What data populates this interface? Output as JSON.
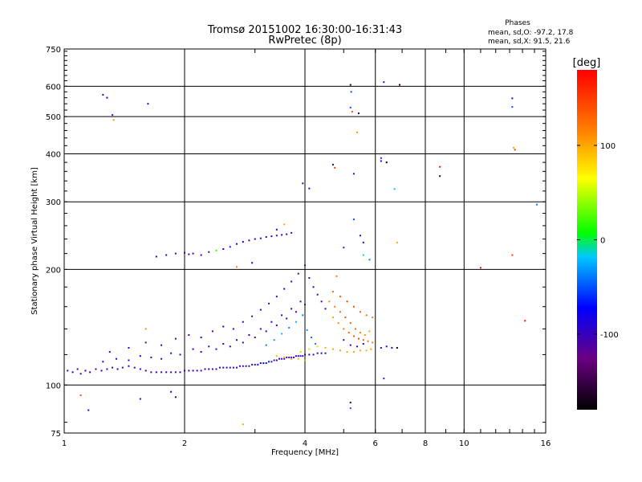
{
  "header": {
    "title_line1": "Tromsø 20151002 16:30:00-16:31:43",
    "title_line2": "RwPretec (8p)"
  },
  "stats": {
    "heading": "Phases",
    "line_o": "mean, sd,O: -97.2, 17.8",
    "line_x": "mean, sd,X:  91.5, 21.6"
  },
  "colorbar": {
    "label": "[deg]",
    "ticks": [
      "100",
      "0",
      "-100"
    ],
    "tick_values": [
      100,
      0,
      -100
    ],
    "range": [
      -180,
      180
    ],
    "colors": [
      "#000000",
      "#6a0080",
      "#0000ff",
      "#00c8ff",
      "#00ff00",
      "#ffff00",
      "#ff8000",
      "#ff0000"
    ]
  },
  "chart_data": {
    "type": "scatter",
    "xlabel": "Frequency [MHz]",
    "ylabel": "Stationary phase Virtual Height [km]",
    "xscale": "log",
    "yscale": "log",
    "xlim": [
      1,
      16
    ],
    "ylim": [
      75,
      750
    ],
    "xticks": [
      1,
      2,
      4,
      6,
      8,
      10,
      16
    ],
    "xtick_labels": [
      "1",
      "2",
      "4",
      "6",
      "8",
      "10",
      "16"
    ],
    "yticks": [
      75,
      100,
      200,
      300,
      400,
      500,
      600,
      750
    ],
    "ytick_labels": [
      "75",
      "100",
      "200",
      "300",
      "400",
      "500",
      "600",
      "750"
    ],
    "grid": true,
    "color_variable": "phase [deg]",
    "points": [
      [
        1.02,
        109,
        -100
      ],
      [
        1.05,
        108,
        -95
      ],
      [
        1.08,
        110,
        -105
      ],
      [
        1.1,
        107,
        -98
      ],
      [
        1.13,
        109,
        -102
      ],
      [
        1.16,
        108,
        -96
      ],
      [
        1.2,
        110,
        -100
      ],
      [
        1.24,
        109,
        -104
      ],
      [
        1.28,
        110,
        -99
      ],
      [
        1.32,
        111,
        -101
      ],
      [
        1.36,
        110,
        -97
      ],
      [
        1.4,
        111,
        -103
      ],
      [
        1.45,
        112,
        -100
      ],
      [
        1.5,
        111,
        -98
      ],
      [
        1.55,
        110,
        -102
      ],
      [
        1.6,
        109,
        -99
      ],
      [
        1.65,
        108,
        -101
      ],
      [
        1.7,
        108,
        -96
      ],
      [
        1.75,
        108,
        -104
      ],
      [
        1.8,
        108,
        -100
      ],
      [
        1.85,
        108,
        -98
      ],
      [
        1.9,
        108,
        -102
      ],
      [
        1.95,
        108,
        -97
      ],
      [
        2.0,
        109,
        -103
      ],
      [
        2.05,
        109,
        -99
      ],
      [
        2.1,
        109,
        -101
      ],
      [
        2.15,
        109,
        -100
      ],
      [
        2.2,
        109,
        -98
      ],
      [
        2.25,
        110,
        -102
      ],
      [
        2.3,
        110,
        -96
      ],
      [
        2.35,
        110,
        -104
      ],
      [
        2.4,
        110,
        -100
      ],
      [
        2.45,
        111,
        -99
      ],
      [
        2.5,
        111,
        -101
      ],
      [
        2.55,
        111,
        -100
      ],
      [
        2.6,
        111,
        -98
      ],
      [
        2.65,
        111,
        -103
      ],
      [
        2.7,
        111,
        -97
      ],
      [
        2.75,
        112,
        -101
      ],
      [
        2.8,
        112,
        -100
      ],
      [
        2.85,
        112,
        -99
      ],
      [
        2.9,
        112,
        -102
      ],
      [
        2.95,
        113,
        -98
      ],
      [
        3.0,
        113,
        -90
      ],
      [
        3.05,
        113,
        -85
      ],
      [
        3.1,
        114,
        -80
      ],
      [
        3.15,
        114,
        -75
      ],
      [
        3.2,
        114,
        -70
      ],
      [
        3.25,
        115,
        -65
      ],
      [
        3.3,
        115,
        -60
      ],
      [
        3.35,
        116,
        -100
      ],
      [
        3.4,
        116,
        -102
      ],
      [
        3.45,
        117,
        -98
      ],
      [
        3.5,
        117,
        -101
      ],
      [
        3.55,
        117,
        -99
      ],
      [
        3.6,
        118,
        -103
      ],
      [
        3.65,
        118,
        -97
      ],
      [
        3.7,
        118,
        -100
      ],
      [
        3.75,
        118,
        -102
      ],
      [
        3.8,
        119,
        -98
      ],
      [
        3.85,
        119,
        -100
      ],
      [
        3.9,
        119,
        -101
      ],
      [
        3.95,
        119,
        -99
      ],
      [
        4.0,
        120,
        -100
      ],
      [
        4.1,
        120,
        -98
      ],
      [
        4.2,
        120,
        -102
      ],
      [
        4.3,
        121,
        -100
      ],
      [
        4.4,
        121,
        -99
      ],
      [
        4.5,
        121,
        -101
      ],
      [
        1.25,
        115,
        -100
      ],
      [
        1.35,
        117,
        -98
      ],
      [
        1.45,
        116,
        -102
      ],
      [
        1.55,
        119,
        -99
      ],
      [
        1.65,
        118,
        -101
      ],
      [
        1.75,
        117,
        -97
      ],
      [
        1.85,
        121,
        -100
      ],
      [
        1.95,
        120,
        -103
      ],
      [
        2.1,
        124,
        -98
      ],
      [
        2.2,
        122,
        -101
      ],
      [
        2.3,
        126,
        -100
      ],
      [
        2.4,
        124,
        -99
      ],
      [
        2.5,
        128,
        -102
      ],
      [
        2.6,
        126,
        -97
      ],
      [
        2.7,
        131,
        -100
      ],
      [
        2.8,
        129,
        -101
      ],
      [
        2.9,
        135,
        -99
      ],
      [
        3.0,
        133,
        -103
      ],
      [
        3.1,
        140,
        -98
      ],
      [
        3.2,
        138,
        -100
      ],
      [
        3.3,
        146,
        -101
      ],
      [
        3.4,
        143,
        -99
      ],
      [
        3.5,
        152,
        -100
      ],
      [
        3.6,
        149,
        -102
      ],
      [
        3.7,
        158,
        -98
      ],
      [
        3.8,
        155,
        -100
      ],
      [
        3.9,
        165,
        -101
      ],
      [
        4.0,
        162,
        -99
      ],
      [
        1.3,
        122,
        -110
      ],
      [
        1.45,
        125,
        -95
      ],
      [
        1.6,
        129,
        -120
      ],
      [
        1.75,
        127,
        -90
      ],
      [
        1.9,
        132,
        -105
      ],
      [
        2.05,
        135,
        -115
      ],
      [
        2.2,
        133,
        -92
      ],
      [
        2.35,
        138,
        -108
      ],
      [
        2.5,
        142,
        -88
      ],
      [
        2.65,
        140,
        -112
      ],
      [
        2.8,
        146,
        -96
      ],
      [
        2.95,
        151,
        -104
      ],
      [
        3.1,
        157,
        -94
      ],
      [
        3.25,
        163,
        -110
      ],
      [
        3.4,
        170,
        -100
      ],
      [
        3.55,
        178,
        -95
      ],
      [
        3.7,
        186,
        -105
      ],
      [
        3.85,
        195,
        -98
      ],
      [
        4.0,
        205,
        -102
      ],
      [
        4.1,
        190,
        -97
      ],
      [
        4.2,
        180,
        -103
      ],
      [
        4.3,
        172,
        -99
      ],
      [
        4.4,
        165,
        -101
      ],
      [
        4.5,
        158,
        -100
      ],
      [
        3.2,
        127,
        -40
      ],
      [
        3.35,
        131,
        -30
      ],
      [
        3.5,
        136,
        -20
      ],
      [
        3.65,
        141,
        -35
      ],
      [
        3.8,
        146,
        -25
      ],
      [
        3.95,
        152,
        -40
      ],
      [
        4.05,
        139,
        -30
      ],
      [
        4.15,
        133,
        -45
      ],
      [
        4.25,
        128,
        -35
      ],
      [
        3.4,
        119,
        95
      ],
      [
        3.55,
        118,
        100
      ],
      [
        3.7,
        117,
        105
      ],
      [
        3.85,
        117,
        98
      ],
      [
        4.0,
        116,
        102
      ],
      [
        3.9,
        122,
        90
      ],
      [
        4.1,
        124,
        85
      ],
      [
        4.3,
        126,
        80
      ],
      [
        4.5,
        125,
        95
      ],
      [
        4.7,
        124,
        100
      ],
      [
        4.9,
        123,
        105
      ],
      [
        5.1,
        122,
        98
      ],
      [
        5.3,
        122,
        102
      ],
      [
        5.5,
        123,
        100
      ],
      [
        5.7,
        123,
        96
      ],
      [
        5.85,
        124,
        104
      ],
      [
        4.6,
        165,
        110
      ],
      [
        4.75,
        160,
        120
      ],
      [
        4.9,
        155,
        130
      ],
      [
        5.05,
        150,
        140
      ],
      [
        5.2,
        145,
        135
      ],
      [
        5.35,
        140,
        125
      ],
      [
        5.5,
        137,
        115
      ],
      [
        5.65,
        135,
        105
      ],
      [
        5.8,
        138,
        100
      ],
      [
        4.7,
        150,
        100
      ],
      [
        4.85,
        145,
        110
      ],
      [
        5.0,
        140,
        120
      ],
      [
        5.15,
        137,
        130
      ],
      [
        5.3,
        134,
        140
      ],
      [
        5.45,
        132,
        145
      ],
      [
        5.6,
        131,
        135
      ],
      [
        5.75,
        130,
        125
      ],
      [
        5.9,
        129,
        115
      ],
      [
        4.7,
        175,
        130
      ],
      [
        4.9,
        170,
        140
      ],
      [
        5.1,
        165,
        150
      ],
      [
        5.3,
        160,
        145
      ],
      [
        5.5,
        155,
        135
      ],
      [
        5.7,
        152,
        125
      ],
      [
        5.9,
        150,
        115
      ],
      [
        5.0,
        131,
        -100
      ],
      [
        5.2,
        127,
        -95
      ],
      [
        5.4,
        126,
        -105
      ],
      [
        5.6,
        128,
        -98
      ],
      [
        6.2,
        125,
        -100
      ],
      [
        6.4,
        126,
        -90
      ],
      [
        6.6,
        125,
        -95
      ],
      [
        1.7,
        216,
        -100
      ],
      [
        1.8,
        218,
        -98
      ],
      [
        1.9,
        220,
        -102
      ],
      [
        2.0,
        221,
        -97
      ],
      [
        2.05,
        219,
        -103
      ],
      [
        2.1,
        220,
        -100
      ],
      [
        2.2,
        218,
        -99
      ],
      [
        2.3,
        222,
        -101
      ],
      [
        2.4,
        224,
        20
      ],
      [
        2.5,
        226,
        -80
      ],
      [
        2.6,
        229,
        -60
      ],
      [
        2.7,
        233,
        -70
      ],
      [
        2.8,
        236,
        -90
      ],
      [
        2.9,
        238,
        -100
      ],
      [
        3.0,
        240,
        -98
      ],
      [
        3.1,
        241,
        -102
      ],
      [
        3.2,
        243,
        -97
      ],
      [
        3.3,
        244,
        -101
      ],
      [
        3.4,
        245,
        -100
      ],
      [
        3.5,
        246,
        -99
      ],
      [
        3.6,
        247,
        -103
      ],
      [
        3.7,
        249,
        -98
      ],
      [
        3.55,
        262,
        100
      ],
      [
        3.4,
        254,
        -90
      ],
      [
        1.25,
        570,
        -100
      ],
      [
        1.28,
        560,
        -80
      ],
      [
        1.32,
        505,
        -60
      ],
      [
        1.33,
        490,
        110
      ],
      [
        1.62,
        540,
        -100
      ],
      [
        5.2,
        605,
        -150
      ],
      [
        5.22,
        580,
        -50
      ],
      [
        5.2,
        528,
        -50
      ],
      [
        5.25,
        515,
        140
      ],
      [
        5.45,
        510,
        -150
      ],
      [
        5.4,
        455,
        110
      ],
      [
        6.3,
        615,
        -100
      ],
      [
        6.9,
        605,
        -150
      ],
      [
        13.2,
        558,
        -100
      ],
      [
        13.2,
        530,
        -50
      ],
      [
        13.3,
        415,
        100
      ],
      [
        13.4,
        410,
        150
      ],
      [
        3.95,
        335,
        -100
      ],
      [
        4.1,
        325,
        -100
      ],
      [
        4.7,
        375,
        -150
      ],
      [
        4.75,
        368,
        150
      ],
      [
        5.3,
        355,
        -100
      ],
      [
        6.2,
        383,
        -90
      ],
      [
        6.2,
        390,
        -60
      ],
      [
        6.4,
        380,
        -180
      ],
      [
        6.7,
        324,
        -20
      ],
      [
        8.7,
        370,
        170
      ],
      [
        8.7,
        350,
        -160
      ],
      [
        15.2,
        295,
        -40
      ],
      [
        5.3,
        270,
        -50
      ],
      [
        5.5,
        245,
        -100
      ],
      [
        5.6,
        235,
        -100
      ],
      [
        6.8,
        235,
        100
      ],
      [
        5.0,
        228,
        -60
      ],
      [
        5.6,
        218,
        -10
      ],
      [
        5.8,
        212,
        -40
      ],
      [
        13.2,
        218,
        150
      ],
      [
        11.0,
        202,
        170
      ],
      [
        1.1,
        94,
        140
      ],
      [
        1.15,
        86,
        -100
      ],
      [
        1.55,
        92,
        -100
      ],
      [
        1.85,
        96,
        -100
      ],
      [
        1.9,
        93,
        -160
      ],
      [
        2.8,
        79,
        100
      ],
      [
        5.2,
        90,
        -160
      ],
      [
        5.2,
        87,
        -50
      ],
      [
        6.3,
        104,
        -60
      ],
      [
        6.8,
        125,
        -180
      ],
      [
        14.2,
        147,
        170
      ],
      [
        1.6,
        140,
        110
      ],
      [
        2.7,
        203,
        110
      ],
      [
        2.95,
        208,
        -100
      ],
      [
        4.8,
        192,
        120
      ]
    ]
  }
}
